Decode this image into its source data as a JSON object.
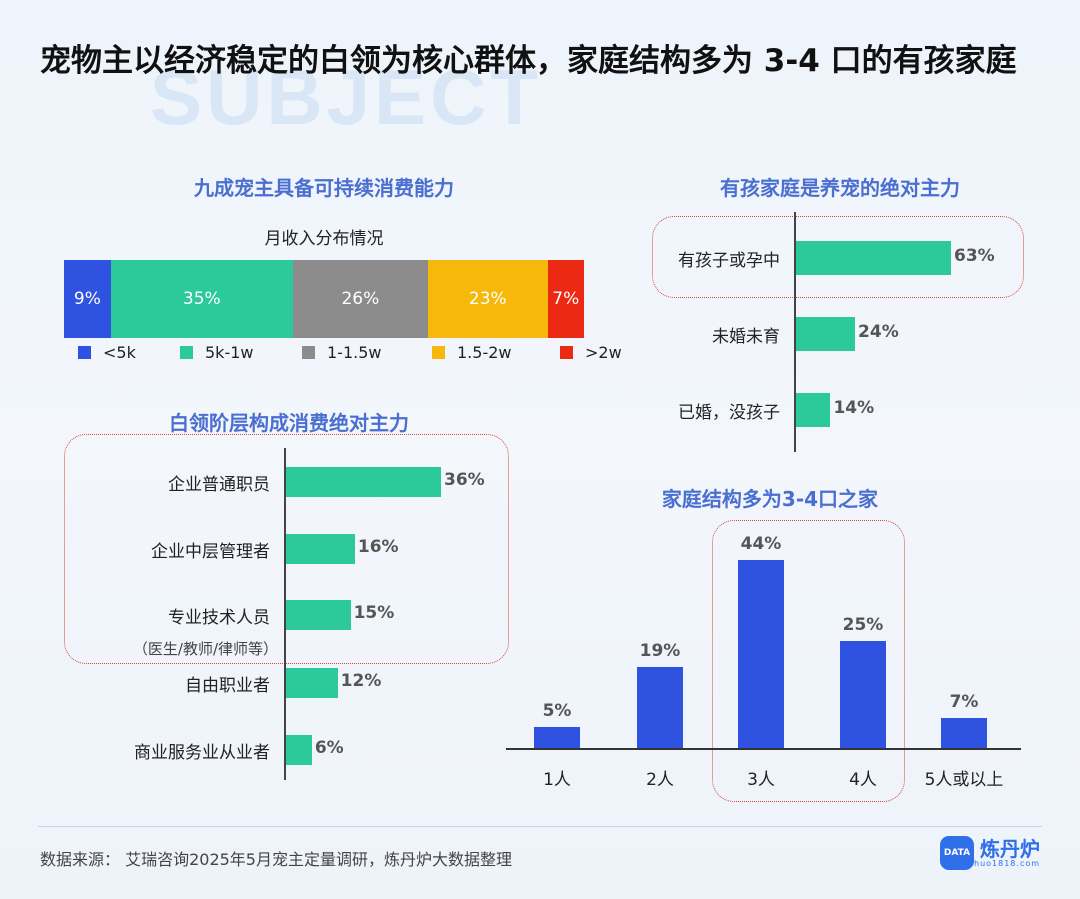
{
  "title": "宠物主以经济稳定的白领为核心群体，家庭结构多为 3-4 口的有孩家庭",
  "background_mark": "SUBJECT",
  "colors": {
    "blue": "#2f53e0",
    "teal": "#2cc99c",
    "gray": "#8c8c8c",
    "orange": "#f5b80b",
    "red": "#ec2a14",
    "section_title": "#4a6fd0",
    "highlight_box": "#d9443b"
  },
  "chart_data": [
    {
      "type": "bar",
      "orientation": "stacked-horizontal",
      "title": "九成宠主具备可持续消费能力",
      "subtitle": "月收入分布情况",
      "categories": [
        "<5k",
        "5k-1w",
        "1-1.5w",
        "1.5-2w",
        ">2w"
      ],
      "values": [
        9,
        35,
        26,
        23,
        7
      ],
      "value_labels": [
        "9%",
        "35%",
        "26%",
        "23%",
        "7%"
      ],
      "legend": "bottom"
    },
    {
      "type": "bar",
      "orientation": "horizontal",
      "title": "白领阶层构成消费绝对主力",
      "categories": [
        "企业普通职员",
        "企业中层管理者",
        "专业技术人员",
        "自由职业者",
        "商业服务业从业者"
      ],
      "category_note": "（医生/教师/律师等）",
      "values": [
        36,
        16,
        15,
        12,
        6
      ],
      "value_labels": [
        "36%",
        "16%",
        "15%",
        "12%",
        "6%"
      ],
      "highlighted": [
        "企业普通职员",
        "企业中层管理者",
        "专业技术人员"
      ]
    },
    {
      "type": "bar",
      "orientation": "horizontal",
      "title": "有孩家庭是养宠的绝对主力",
      "categories": [
        "有孩子或孕中",
        "未婚未育",
        "已婚，没孩子"
      ],
      "values": [
        63,
        24,
        14
      ],
      "value_labels": [
        "63%",
        "24%",
        "14%"
      ],
      "highlighted": [
        "有孩子或孕中"
      ]
    },
    {
      "type": "bar",
      "orientation": "vertical",
      "title": "家庭结构多为3-4口之家",
      "categories": [
        "1人",
        "2人",
        "3人",
        "4人",
        "5人或以上"
      ],
      "values": [
        5,
        19,
        44,
        25,
        7
      ],
      "value_labels": [
        "5%",
        "19%",
        "44%",
        "25%",
        "7%"
      ],
      "highlighted": [
        "3人",
        "4人"
      ]
    }
  ],
  "footer": {
    "source": "数据来源： 艾瑞咨询2025年5月宠主定量调研，炼丹炉大数据整理",
    "logo_text": "炼丹炉",
    "logo_badge": "DATA",
    "logo_url": "huo1818.com"
  }
}
